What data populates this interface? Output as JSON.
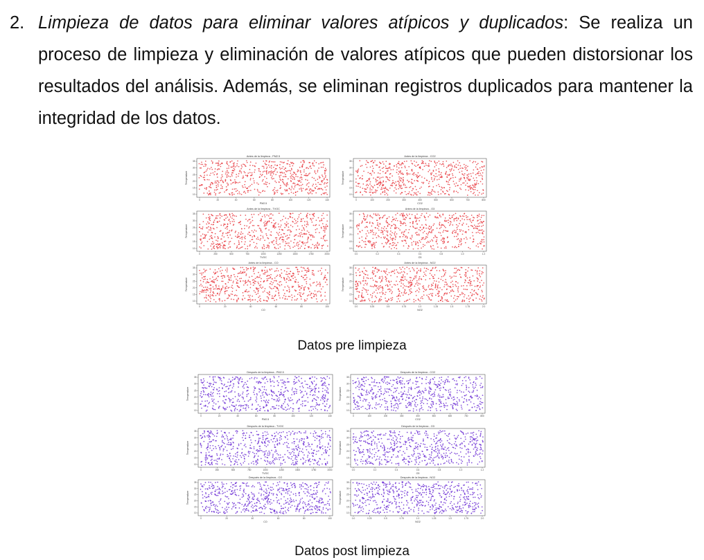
{
  "paragraph": {
    "number": "2.",
    "lead": "Limpieza de datos para eliminar valores atípicos y duplicados",
    "colon": ":",
    "text": " Se realiza un proceso de limpieza y eliminación de valores atípicos que pueden distorsionar los resultados del análisis. Además, se eliminan registros duplicados para mantener la integridad de los datos."
  },
  "figures": [
    {
      "caption": "Datos pre limpieza",
      "point_color": "#e8373d",
      "panels": [
        {
          "title": "Antes de la limpieza - PM2.5",
          "xlabel": "PM2.5",
          "ylabel": "Temperature",
          "xticks": [
            "0",
            "20",
            "40",
            "60",
            "80",
            "100",
            "120",
            "140"
          ],
          "yticks": [
            "10",
            "15",
            "20",
            "25",
            "30",
            "35"
          ],
          "points": 620
        },
        {
          "title": "Antes de la limpieza - CO2",
          "xlabel": "CO2",
          "ylabel": "Temperature",
          "xticks": [
            "0",
            "100",
            "200",
            "300",
            "400",
            "500",
            "600",
            "700",
            "800"
          ],
          "yticks": [
            "10",
            "15",
            "20",
            "25",
            "30",
            "35"
          ],
          "points": 620
        },
        {
          "title": "Antes de la limpieza - TVOC",
          "xlabel": "TVOC",
          "ylabel": "Temperature",
          "xticks": [
            "0",
            "250",
            "500",
            "750",
            "1000",
            "1250",
            "1500",
            "1750",
            "2000"
          ],
          "yticks": [
            "10",
            "15",
            "20",
            "25",
            "30",
            "35"
          ],
          "points": 620
        },
        {
          "title": "Antes de la limpieza - O3",
          "xlabel": "O3",
          "ylabel": "Temperature",
          "xticks": [
            "0.0",
            "0.2",
            "0.4",
            "0.6",
            "0.8",
            "1.0",
            "1.2"
          ],
          "yticks": [
            "10",
            "15",
            "20",
            "25",
            "30",
            "35"
          ],
          "points": 620
        },
        {
          "title": "Antes de la limpieza - CO",
          "xlabel": "CO",
          "ylabel": "Temperature",
          "xticks": [
            "0",
            "20",
            "40",
            "60",
            "80",
            "100"
          ],
          "yticks": [
            "10",
            "15",
            "20",
            "25",
            "30",
            "35"
          ],
          "points": 620
        },
        {
          "title": "Antes de la limpieza - NO2",
          "xlabel": "NO2",
          "ylabel": "Temperature",
          "xticks": [
            "0.0",
            "0.25",
            "0.5",
            "0.75",
            "1.0",
            "1.25",
            "1.5",
            "1.75",
            "2.0"
          ],
          "yticks": [
            "10",
            "15",
            "20",
            "25",
            "30",
            "35"
          ],
          "points": 620
        }
      ]
    },
    {
      "caption": "Datos post limpieza",
      "point_color": "#6a2bd4",
      "panels": [
        {
          "title": "Después de la limpieza - PM2.5",
          "xlabel": "PM2.5",
          "ylabel": "Temperature",
          "xticks": [
            "0",
            "20",
            "40",
            "60",
            "80",
            "100",
            "120",
            "140"
          ],
          "yticks": [
            "10",
            "15",
            "20",
            "25",
            "30",
            "35"
          ],
          "points": 620
        },
        {
          "title": "Después de la limpieza - CO2",
          "xlabel": "CO2",
          "ylabel": "Temperature",
          "xticks": [
            "0",
            "100",
            "200",
            "300",
            "400",
            "500",
            "600",
            "700",
            "800"
          ],
          "yticks": [
            "10",
            "15",
            "20",
            "25",
            "30",
            "35"
          ],
          "points": 620
        },
        {
          "title": "Después de la limpieza - TVOC",
          "xlabel": "TVOC",
          "ylabel": "Temperature",
          "xticks": [
            "0",
            "250",
            "500",
            "750",
            "1000",
            "1250",
            "1500",
            "1750",
            "2000"
          ],
          "yticks": [
            "10",
            "15",
            "20",
            "25",
            "30",
            "35"
          ],
          "points": 620
        },
        {
          "title": "Después de la limpieza - O3",
          "xlabel": "O3",
          "ylabel": "Temperature",
          "xticks": [
            "0.0",
            "0.2",
            "0.4",
            "0.6",
            "0.8",
            "1.0",
            "1.2"
          ],
          "yticks": [
            "10",
            "15",
            "20",
            "25",
            "30",
            "35"
          ],
          "points": 620
        },
        {
          "title": "Después de la limpieza - CO",
          "xlabel": "CO",
          "ylabel": "Temperature",
          "xticks": [
            "0",
            "20",
            "40",
            "60",
            "80",
            "100"
          ],
          "yticks": [
            "10",
            "15",
            "20",
            "25",
            "30",
            "35"
          ],
          "points": 620
        },
        {
          "title": "Después de la limpieza - NO2",
          "xlabel": "NO2",
          "ylabel": "Temperature",
          "xticks": [
            "0.0",
            "0.25",
            "0.5",
            "0.75",
            "1.0",
            "1.25",
            "1.5",
            "1.75",
            "2.0"
          ],
          "yticks": [
            "10",
            "15",
            "20",
            "25",
            "30",
            "35"
          ],
          "points": 620
        }
      ]
    }
  ]
}
